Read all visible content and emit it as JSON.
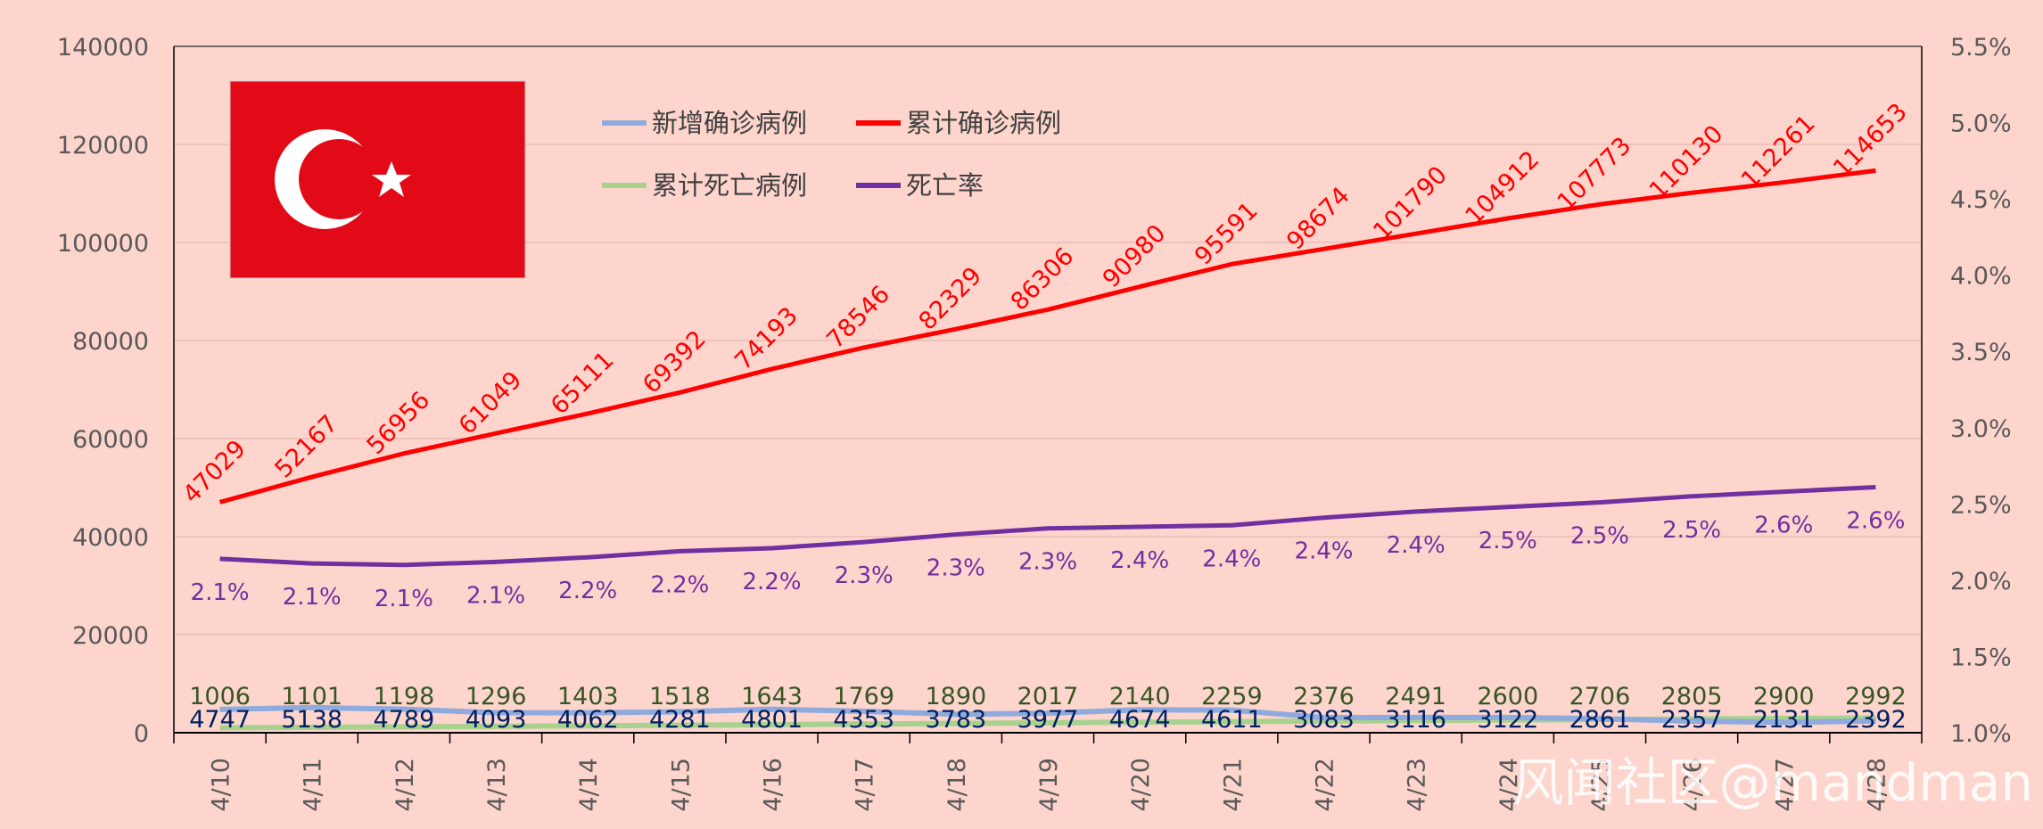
{
  "colors": {
    "background": "#FDD5CD",
    "new_cases": "#8FAADC",
    "cum_cases": "#FF0000",
    "cum_deaths": "#A9D18E",
    "death_rate": "#7030A0",
    "death_label": "#375623",
    "new_label": "#002060",
    "flag_red": "#E30A17"
  },
  "watermark": "风闻社区@mandman",
  "legend": {
    "items": [
      {
        "label": "新增确诊病例",
        "color": "#8FAADC"
      },
      {
        "label": "累计确诊病例",
        "color": "#FF0000"
      },
      {
        "label": "累计死亡病例",
        "color": "#A9D18E"
      },
      {
        "label": "死亡率",
        "color": "#7030A0"
      }
    ]
  },
  "chart_data": {
    "type": "line",
    "categories": [
      "4/10",
      "4/11",
      "4/12",
      "4/13",
      "4/14",
      "4/15",
      "4/16",
      "4/17",
      "4/18",
      "4/19",
      "4/20",
      "4/21",
      "4/22",
      "4/23",
      "4/24",
      "4/25",
      "4/26",
      "4/27",
      "4/28"
    ],
    "y_left": {
      "min": 0,
      "max": 140000,
      "ticks": [
        "0",
        "20000",
        "40000",
        "60000",
        "80000",
        "100000",
        "120000",
        "140000"
      ]
    },
    "y_right": {
      "min": 1.0,
      "max": 5.5,
      "ticks": [
        "1.0%",
        "1.5%",
        "2.0%",
        "2.5%",
        "3.0%",
        "3.5%",
        "4.0%",
        "4.5%",
        "5.0%",
        "5.5%"
      ]
    },
    "grid": true,
    "series": [
      {
        "name": "新增确诊病例",
        "axis": "left",
        "values": [
          4747,
          5138,
          4789,
          4093,
          4062,
          4281,
          4801,
          4353,
          3783,
          3977,
          4674,
          4611,
          3083,
          3116,
          3122,
          2861,
          2357,
          2131,
          2392
        ]
      },
      {
        "name": "累计确诊病例",
        "axis": "left",
        "values": [
          47029,
          52167,
          56956,
          61049,
          65111,
          69392,
          74193,
          78546,
          82329,
          86306,
          90980,
          95591,
          98674,
          101790,
          104912,
          107773,
          110130,
          112261,
          114653
        ]
      },
      {
        "name": "累计死亡病例",
        "axis": "left",
        "values": [
          1006,
          1101,
          1198,
          1296,
          1403,
          1518,
          1643,
          1769,
          1890,
          2017,
          2140,
          2259,
          2376,
          2491,
          2600,
          2706,
          2805,
          2900,
          2992
        ]
      },
      {
        "name": "死亡率",
        "axis": "right",
        "values": [
          2.14,
          2.11,
          2.1,
          2.12,
          2.15,
          2.19,
          2.21,
          2.25,
          2.3,
          2.34,
          2.35,
          2.36,
          2.41,
          2.45,
          2.48,
          2.51,
          2.55,
          2.58,
          2.61
        ],
        "labels": [
          "2.1%",
          "2.1%",
          "2.1%",
          "2.1%",
          "2.2%",
          "2.2%",
          "2.2%",
          "2.3%",
          "2.3%",
          "2.3%",
          "2.4%",
          "2.4%",
          "2.4%",
          "2.4%",
          "2.5%",
          "2.5%",
          "2.5%",
          "2.6%",
          "2.6%"
        ]
      }
    ]
  }
}
